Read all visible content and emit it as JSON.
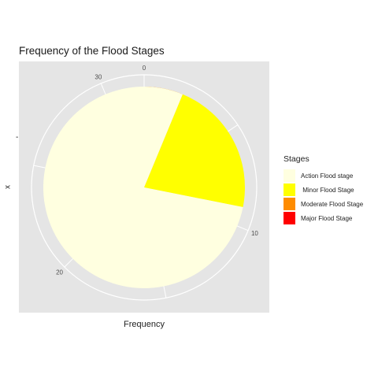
{
  "chart_data": {
    "type": "pie",
    "title": "Frequency of the Flood Stages",
    "xlabel": "Frequency",
    "ylabel": "x",
    "y_tick_label": "-",
    "radial_axis": {
      "min": 0,
      "max": 32,
      "ticks": [
        0,
        10,
        20,
        30
      ],
      "grid": true
    },
    "legend": {
      "title": "Stages",
      "position": "right"
    },
    "categories": [
      "Action Flood stage",
      " Minor Flood Stage",
      "Moderate Flood Stage",
      "Major Flood Stage"
    ],
    "values": [
      25,
      7,
      2,
      0
    ],
    "colors": [
      "#ffffe0",
      "#ffff00",
      "#ff8c00",
      "#ff0000"
    ],
    "stack_order": [
      "Moderate Flood Stage",
      " Minor Flood Stage",
      "Action Flood stage",
      "Major Flood Stage"
    ],
    "panel_background": "#e5e5e5",
    "grid_color": "#ffffff"
  }
}
